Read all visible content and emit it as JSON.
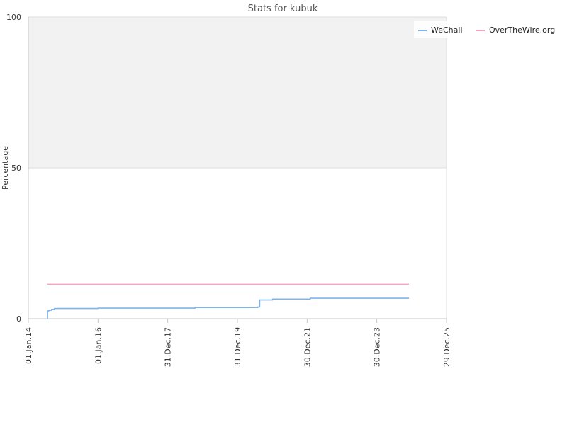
{
  "chart_data": {
    "type": "line",
    "title": "Stats for kubuk",
    "xlabel": "",
    "ylabel": "Percentage",
    "ylim": [
      0,
      100
    ],
    "xlim": [
      "2014-01-01",
      "2025-12-29"
    ],
    "y_ticks": [
      {
        "value": 0,
        "label": "0"
      },
      {
        "value": 50,
        "label": "50"
      },
      {
        "value": 100,
        "label": "100"
      }
    ],
    "x_ticks": [
      {
        "date": "2014-01-01",
        "label": "01.Jan.14"
      },
      {
        "date": "2016-01-01",
        "label": "01.Jan.16"
      },
      {
        "date": "2017-12-31",
        "label": "31.Dec.17"
      },
      {
        "date": "2019-12-31",
        "label": "31.Dec.19"
      },
      {
        "date": "2021-12-30",
        "label": "30.Dec.21"
      },
      {
        "date": "2023-12-30",
        "label": "30.Dec.23"
      },
      {
        "date": "2025-12-29",
        "label": "29.Dec.25"
      }
    ],
    "bands": [
      {
        "from": 50,
        "to": 100,
        "color": "#f2f2f2"
      }
    ],
    "grid": true,
    "legend_position": "top-right",
    "series": [
      {
        "name": "WeChall",
        "color": "#7cb5ec",
        "step": true,
        "points": [
          {
            "x": "2014-07-20",
            "y": 0
          },
          {
            "x": "2014-07-21",
            "y": 2.6
          },
          {
            "x": "2014-08-05",
            "y": 2.8
          },
          {
            "x": "2014-09-01",
            "y": 3.1
          },
          {
            "x": "2014-10-01",
            "y": 3.4
          },
          {
            "x": "2016-01-01",
            "y": 3.5
          },
          {
            "x": "2018-10-15",
            "y": 3.7
          },
          {
            "x": "2020-08-01",
            "y": 3.9
          },
          {
            "x": "2020-08-20",
            "y": 6.2
          },
          {
            "x": "2021-01-01",
            "y": 6.5
          },
          {
            "x": "2022-02-01",
            "y": 6.8
          },
          {
            "x": "2024-12-01",
            "y": 6.8
          }
        ]
      },
      {
        "name": "OverTheWire.org",
        "color": "#f7a1c4",
        "step": false,
        "points": [
          {
            "x": "2014-07-20",
            "y": 11.4
          },
          {
            "x": "2024-12-01",
            "y": 11.4
          }
        ]
      }
    ]
  }
}
